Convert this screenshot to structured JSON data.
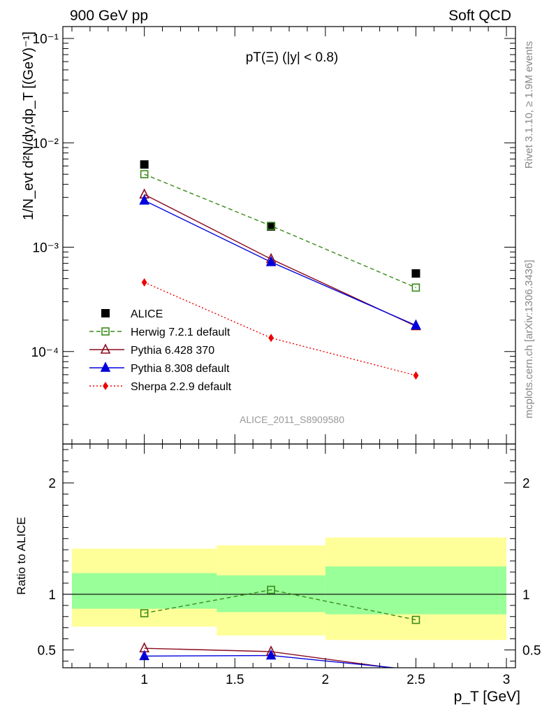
{
  "header": {
    "left": "900 GeV pp",
    "right": "Soft QCD"
  },
  "side_text": {
    "rivet": "Rivet 3.1.10, ≥ 1.9M events",
    "mcplots": "mcplots.cern.ch [arXiv:1306.3436]"
  },
  "chart_data": [
    {
      "type": "line",
      "panel": "main",
      "title": "pT(Ξ) (|y| < 0.8)",
      "watermark": "ALICE_2011_S8909580",
      "ylabel": "1/N_evt d²N/dy,dp_T [(GeV)⁻¹]",
      "yscale": "log",
      "ylim": [
        1.3e-05,
        0.13
      ],
      "xlim": [
        0.55,
        3.05
      ],
      "ytick_labels": [
        "10⁻⁴",
        "10⁻³",
        "10⁻²",
        "10⁻¹"
      ],
      "legend_position": "lower-left",
      "x": [
        1.0,
        1.7,
        2.5
      ],
      "series": [
        {
          "name": "ALICE",
          "values": [
            0.0062,
            0.00158,
            0.00056
          ],
          "color": "#000000",
          "marker": "square-filled",
          "line": "none"
        },
        {
          "name": "Herwig 7.2.1 default",
          "values": [
            0.005,
            0.0016,
            0.00041
          ],
          "color": "#3a8a1a",
          "marker": "square-open",
          "line": "dashed"
        },
        {
          "name": "Pythia 6.428 370",
          "values": [
            0.0032,
            0.00077,
            0.000175
          ],
          "color": "#8b0a1e",
          "marker": "triangle-open",
          "line": "solid"
        },
        {
          "name": "Pythia 8.308 default",
          "values": [
            0.0028,
            0.00072,
            0.000178
          ],
          "color": "#0000dd",
          "marker": "triangle-filled",
          "line": "solid"
        },
        {
          "name": "Sherpa 2.2.9 default",
          "values": [
            0.00046,
            0.000135,
            5.9e-05
          ],
          "color": "#ee0000",
          "marker": "diamond-filled",
          "line": "dotted"
        }
      ]
    },
    {
      "type": "line",
      "panel": "ratio",
      "ylabel": "Ratio to ALICE",
      "xlabel": "p_T [GeV]",
      "ylim": [
        0.34,
        2.35
      ],
      "xlim": [
        0.55,
        3.05
      ],
      "xticks": [
        1,
        1.5,
        2,
        2.5,
        3
      ],
      "yticks": [
        0.5,
        1,
        2
      ],
      "reference_line": 1,
      "bands": [
        {
          "x0": 0.6,
          "x1": 1.4,
          "green": [
            0.87,
            1.19
          ],
          "yellow": [
            0.71,
            1.41
          ]
        },
        {
          "x0": 1.4,
          "x1": 2.0,
          "green": [
            0.84,
            1.17
          ],
          "yellow": [
            0.63,
            1.44
          ]
        },
        {
          "x0": 2.0,
          "x1": 3.0,
          "green": [
            0.82,
            1.25
          ],
          "yellow": [
            0.59,
            1.51
          ]
        }
      ],
      "x": [
        1.0,
        1.7,
        2.5
      ],
      "series": [
        {
          "name": "Herwig 7.2.1 default",
          "values": [
            0.83,
            1.04,
            0.77
          ],
          "color": "#3a8a1a",
          "marker": "square-open",
          "line": "dashed"
        },
        {
          "name": "Pythia 6.428 370",
          "values": [
            0.515,
            0.485,
            0.31
          ],
          "color": "#8b0a1e",
          "marker": "triangle-open",
          "line": "solid"
        },
        {
          "name": "Pythia 8.308 default",
          "values": [
            0.445,
            0.45,
            0.32
          ],
          "color": "#0000dd",
          "marker": "triangle-filled",
          "line": "solid"
        }
      ]
    }
  ]
}
